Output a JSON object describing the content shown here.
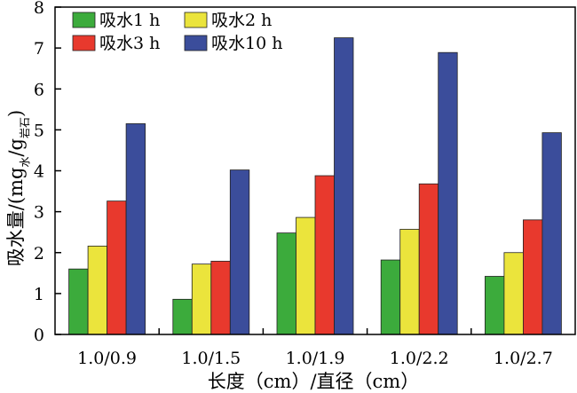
{
  "chart_data": {
    "type": "bar",
    "categories": [
      "1.0/0.9",
      "1.0/1.5",
      "1.0/1.9",
      "1.0/2.2",
      "1.0/2.7"
    ],
    "series": [
      {
        "name": "吸水1  h",
        "color": "#3cab3c",
        "values": [
          1.6,
          0.86,
          2.48,
          1.82,
          1.42
        ]
      },
      {
        "name": "吸水2  h",
        "color": "#ebe43c",
        "values": [
          2.16,
          1.72,
          2.86,
          2.57,
          2.0
        ]
      },
      {
        "name": "吸水3  h",
        "color": "#e8392d",
        "values": [
          3.26,
          1.79,
          3.88,
          3.68,
          2.8
        ]
      },
      {
        "name": "吸水10  h",
        "color": "#3b4d9b",
        "values": [
          5.15,
          4.02,
          7.25,
          6.89,
          4.93
        ]
      }
    ],
    "xlabel": "长度（cm）/直径（cm）",
    "ylabel_main": "吸水量/(mg",
    "ylabel_sub1": "水",
    "ylabel_mid": "/g",
    "ylabel_sub2": "岩石",
    "ylabel_end": ")",
    "ylim": [
      0,
      8
    ],
    "yticks": [
      0,
      1,
      2,
      3,
      4,
      5,
      6,
      7,
      8
    ],
    "legend_position": "top-left",
    "grid": false
  }
}
